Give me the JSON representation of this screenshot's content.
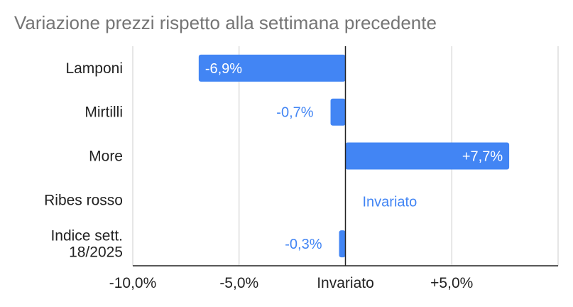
{
  "title": "Variazione prezzi rispetto alla settimana precedente",
  "chart_data": {
    "type": "bar",
    "orientation": "horizontal",
    "title": "Variazione prezzi rispetto alla settimana precedente",
    "xlabel": "",
    "ylabel": "",
    "categories": [
      [
        "Lamponi"
      ],
      [
        "Mirtilli"
      ],
      [
        "More"
      ],
      [
        "Ribes rosso"
      ],
      [
        "Indice sett.",
        "18/2025"
      ]
    ],
    "values": [
      -6.9,
      -0.7,
      7.7,
      0,
      -0.3
    ],
    "data_labels": [
      "-6,9%",
      "-0,7%",
      "+7,7%",
      "Invariato",
      "-0,3%"
    ],
    "xlim": [
      -10,
      10
    ],
    "x_ticks": [
      -10,
      -5,
      0,
      5,
      10
    ],
    "x_tick_labels": [
      "-10,0%",
      "-5,0%",
      "Invariato",
      "+5,0%",
      ""
    ],
    "grid": true,
    "legend": "none",
    "colors": {
      "bar": "#4285f4",
      "grid": "#cccccc",
      "axis": "#222222",
      "title": "#757575"
    }
  }
}
